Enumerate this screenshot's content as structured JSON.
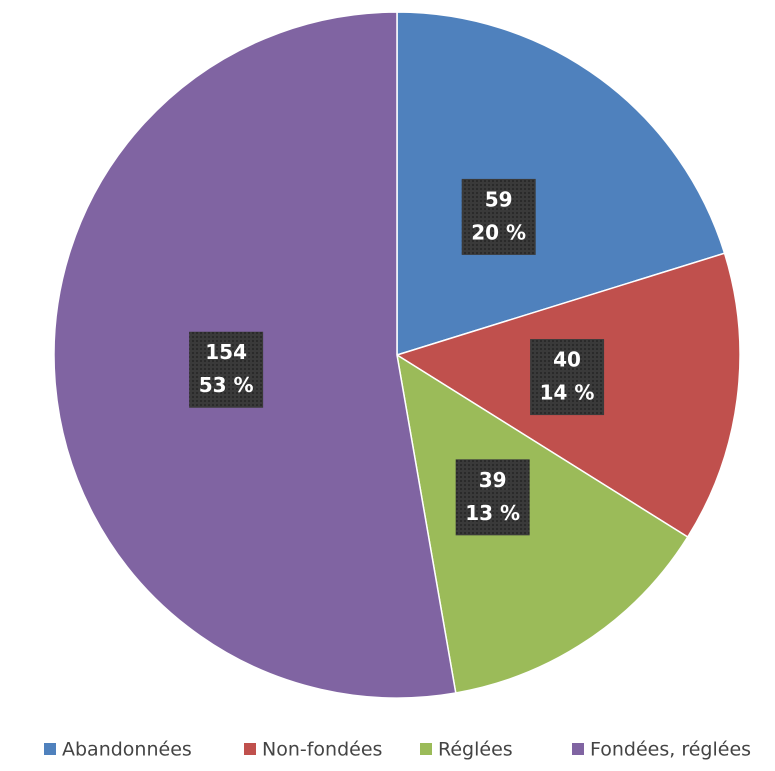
{
  "chart_data": {
    "type": "pie",
    "categories": [
      "Abandonnées",
      "Non-fondées",
      "Réglées",
      "Fondées, réglées"
    ],
    "values": [
      59,
      40,
      39,
      154
    ],
    "percentages": [
      20,
      14,
      13,
      53
    ],
    "percentage_labels": [
      "20 %",
      "14 %",
      "13 %",
      "53 %"
    ],
    "colors": [
      "#4f81bd",
      "#c0504d",
      "#9bbb59",
      "#8064a2"
    ],
    "legend": "bottom"
  }
}
